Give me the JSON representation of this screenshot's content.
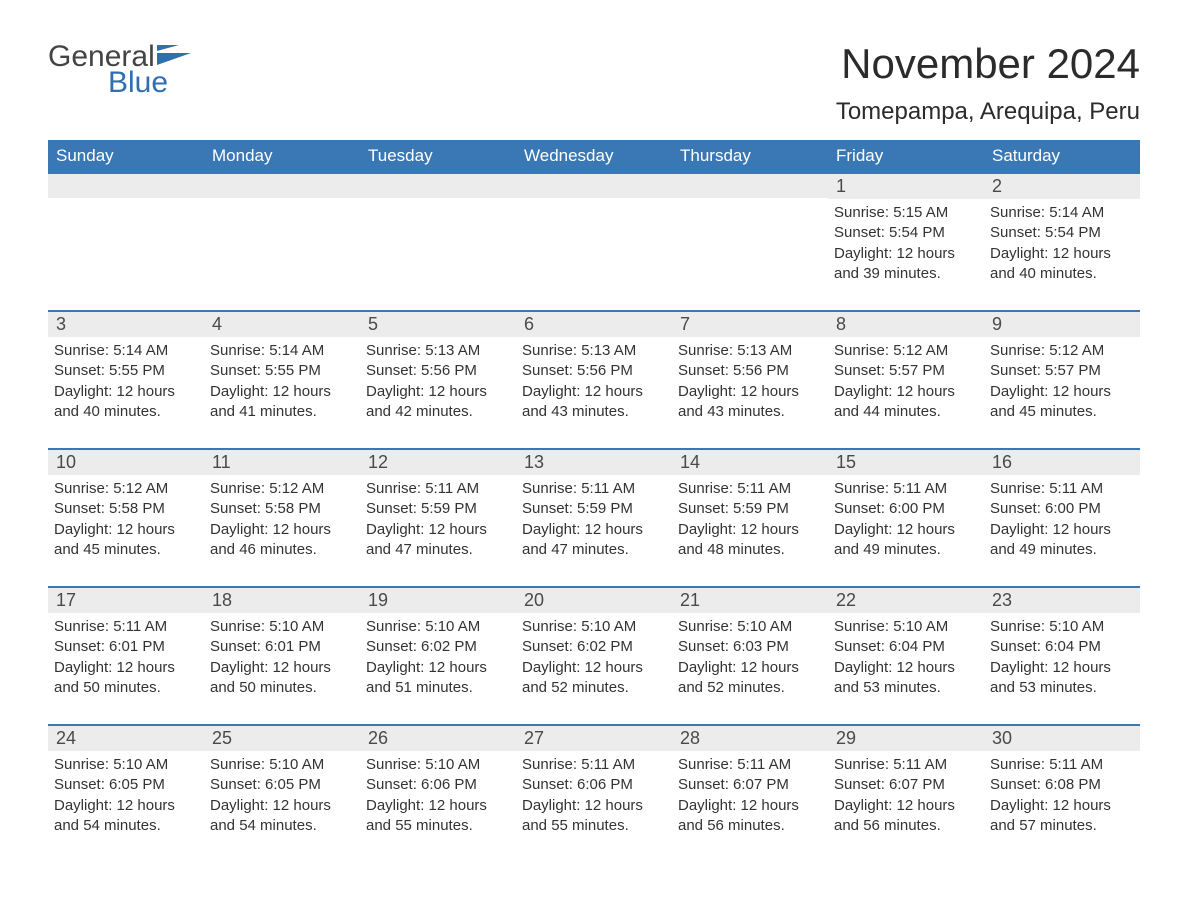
{
  "brand": {
    "general": "General",
    "blue": "Blue"
  },
  "title": "November 2024",
  "location": "Tomepampa, Arequipa, Peru",
  "colors": {
    "header_bg": "#3a78b5",
    "header_text": "#ffffff",
    "strip_bg": "#ececec",
    "text": "#333333",
    "brand_blue": "#2f6fb0",
    "background": "#ffffff"
  },
  "weekdays": [
    "Sunday",
    "Monday",
    "Tuesday",
    "Wednesday",
    "Thursday",
    "Friday",
    "Saturday"
  ],
  "weeks": [
    [
      null,
      null,
      null,
      null,
      null,
      {
        "n": "1",
        "sunrise": "Sunrise: 5:15 AM",
        "sunset": "Sunset: 5:54 PM",
        "d1": "Daylight: 12 hours",
        "d2": "and 39 minutes."
      },
      {
        "n": "2",
        "sunrise": "Sunrise: 5:14 AM",
        "sunset": "Sunset: 5:54 PM",
        "d1": "Daylight: 12 hours",
        "d2": "and 40 minutes."
      }
    ],
    [
      {
        "n": "3",
        "sunrise": "Sunrise: 5:14 AM",
        "sunset": "Sunset: 5:55 PM",
        "d1": "Daylight: 12 hours",
        "d2": "and 40 minutes."
      },
      {
        "n": "4",
        "sunrise": "Sunrise: 5:14 AM",
        "sunset": "Sunset: 5:55 PM",
        "d1": "Daylight: 12 hours",
        "d2": "and 41 minutes."
      },
      {
        "n": "5",
        "sunrise": "Sunrise: 5:13 AM",
        "sunset": "Sunset: 5:56 PM",
        "d1": "Daylight: 12 hours",
        "d2": "and 42 minutes."
      },
      {
        "n": "6",
        "sunrise": "Sunrise: 5:13 AM",
        "sunset": "Sunset: 5:56 PM",
        "d1": "Daylight: 12 hours",
        "d2": "and 43 minutes."
      },
      {
        "n": "7",
        "sunrise": "Sunrise: 5:13 AM",
        "sunset": "Sunset: 5:56 PM",
        "d1": "Daylight: 12 hours",
        "d2": "and 43 minutes."
      },
      {
        "n": "8",
        "sunrise": "Sunrise: 5:12 AM",
        "sunset": "Sunset: 5:57 PM",
        "d1": "Daylight: 12 hours",
        "d2": "and 44 minutes."
      },
      {
        "n": "9",
        "sunrise": "Sunrise: 5:12 AM",
        "sunset": "Sunset: 5:57 PM",
        "d1": "Daylight: 12 hours",
        "d2": "and 45 minutes."
      }
    ],
    [
      {
        "n": "10",
        "sunrise": "Sunrise: 5:12 AM",
        "sunset": "Sunset: 5:58 PM",
        "d1": "Daylight: 12 hours",
        "d2": "and 45 minutes."
      },
      {
        "n": "11",
        "sunrise": "Sunrise: 5:12 AM",
        "sunset": "Sunset: 5:58 PM",
        "d1": "Daylight: 12 hours",
        "d2": "and 46 minutes."
      },
      {
        "n": "12",
        "sunrise": "Sunrise: 5:11 AM",
        "sunset": "Sunset: 5:59 PM",
        "d1": "Daylight: 12 hours",
        "d2": "and 47 minutes."
      },
      {
        "n": "13",
        "sunrise": "Sunrise: 5:11 AM",
        "sunset": "Sunset: 5:59 PM",
        "d1": "Daylight: 12 hours",
        "d2": "and 47 minutes."
      },
      {
        "n": "14",
        "sunrise": "Sunrise: 5:11 AM",
        "sunset": "Sunset: 5:59 PM",
        "d1": "Daylight: 12 hours",
        "d2": "and 48 minutes."
      },
      {
        "n": "15",
        "sunrise": "Sunrise: 5:11 AM",
        "sunset": "Sunset: 6:00 PM",
        "d1": "Daylight: 12 hours",
        "d2": "and 49 minutes."
      },
      {
        "n": "16",
        "sunrise": "Sunrise: 5:11 AM",
        "sunset": "Sunset: 6:00 PM",
        "d1": "Daylight: 12 hours",
        "d2": "and 49 minutes."
      }
    ],
    [
      {
        "n": "17",
        "sunrise": "Sunrise: 5:11 AM",
        "sunset": "Sunset: 6:01 PM",
        "d1": "Daylight: 12 hours",
        "d2": "and 50 minutes."
      },
      {
        "n": "18",
        "sunrise": "Sunrise: 5:10 AM",
        "sunset": "Sunset: 6:01 PM",
        "d1": "Daylight: 12 hours",
        "d2": "and 50 minutes."
      },
      {
        "n": "19",
        "sunrise": "Sunrise: 5:10 AM",
        "sunset": "Sunset: 6:02 PM",
        "d1": "Daylight: 12 hours",
        "d2": "and 51 minutes."
      },
      {
        "n": "20",
        "sunrise": "Sunrise: 5:10 AM",
        "sunset": "Sunset: 6:02 PM",
        "d1": "Daylight: 12 hours",
        "d2": "and 52 minutes."
      },
      {
        "n": "21",
        "sunrise": "Sunrise: 5:10 AM",
        "sunset": "Sunset: 6:03 PM",
        "d1": "Daylight: 12 hours",
        "d2": "and 52 minutes."
      },
      {
        "n": "22",
        "sunrise": "Sunrise: 5:10 AM",
        "sunset": "Sunset: 6:04 PM",
        "d1": "Daylight: 12 hours",
        "d2": "and 53 minutes."
      },
      {
        "n": "23",
        "sunrise": "Sunrise: 5:10 AM",
        "sunset": "Sunset: 6:04 PM",
        "d1": "Daylight: 12 hours",
        "d2": "and 53 minutes."
      }
    ],
    [
      {
        "n": "24",
        "sunrise": "Sunrise: 5:10 AM",
        "sunset": "Sunset: 6:05 PM",
        "d1": "Daylight: 12 hours",
        "d2": "and 54 minutes."
      },
      {
        "n": "25",
        "sunrise": "Sunrise: 5:10 AM",
        "sunset": "Sunset: 6:05 PM",
        "d1": "Daylight: 12 hours",
        "d2": "and 54 minutes."
      },
      {
        "n": "26",
        "sunrise": "Sunrise: 5:10 AM",
        "sunset": "Sunset: 6:06 PM",
        "d1": "Daylight: 12 hours",
        "d2": "and 55 minutes."
      },
      {
        "n": "27",
        "sunrise": "Sunrise: 5:11 AM",
        "sunset": "Sunset: 6:06 PM",
        "d1": "Daylight: 12 hours",
        "d2": "and 55 minutes."
      },
      {
        "n": "28",
        "sunrise": "Sunrise: 5:11 AM",
        "sunset": "Sunset: 6:07 PM",
        "d1": "Daylight: 12 hours",
        "d2": "and 56 minutes."
      },
      {
        "n": "29",
        "sunrise": "Sunrise: 5:11 AM",
        "sunset": "Sunset: 6:07 PM",
        "d1": "Daylight: 12 hours",
        "d2": "and 56 minutes."
      },
      {
        "n": "30",
        "sunrise": "Sunrise: 5:11 AM",
        "sunset": "Sunset: 6:08 PM",
        "d1": "Daylight: 12 hours",
        "d2": "and 57 minutes."
      }
    ]
  ]
}
